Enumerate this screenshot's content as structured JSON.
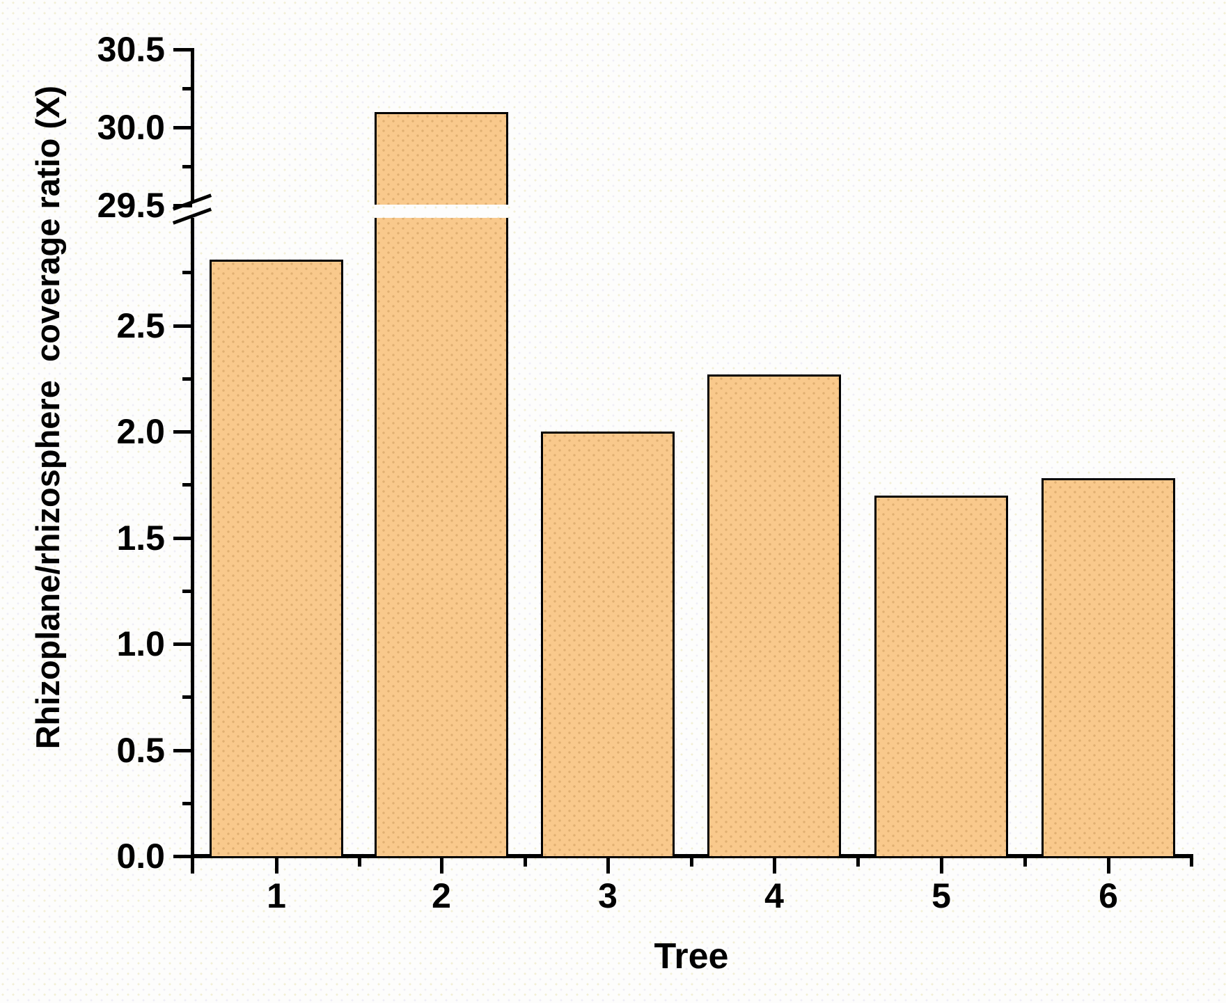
{
  "chart_data": {
    "type": "bar",
    "title": "",
    "xlabel": "Tree",
    "ylabel": "Rhizoplane/rhizosphere  coverage ratio (X)",
    "categories": [
      "1",
      "2",
      "3",
      "4",
      "5",
      "6"
    ],
    "values": [
      2.81,
      30.1,
      2.0,
      2.27,
      1.7,
      1.78
    ],
    "series_name": "Rhizoplane/rhizosphere coverage ratio",
    "y_axis_break": {
      "lower_section_range": [
        0,
        2.95
      ],
      "upper_section_range": [
        29.5,
        30.5
      ]
    },
    "y_ticks_lower": [
      "0.0",
      "0.5",
      "1.0",
      "1.5",
      "2.0",
      "2.5"
    ],
    "y_ticks_upper": [
      "29.5",
      "30.0",
      "30.5"
    ],
    "y_minor_tick_step": 0.25,
    "grid": false,
    "legend": null,
    "colors": {
      "bar_fill": "#f9c98c",
      "bar_edge": "#000000",
      "axis": "#000000",
      "background": "#fdfdfc"
    }
  }
}
